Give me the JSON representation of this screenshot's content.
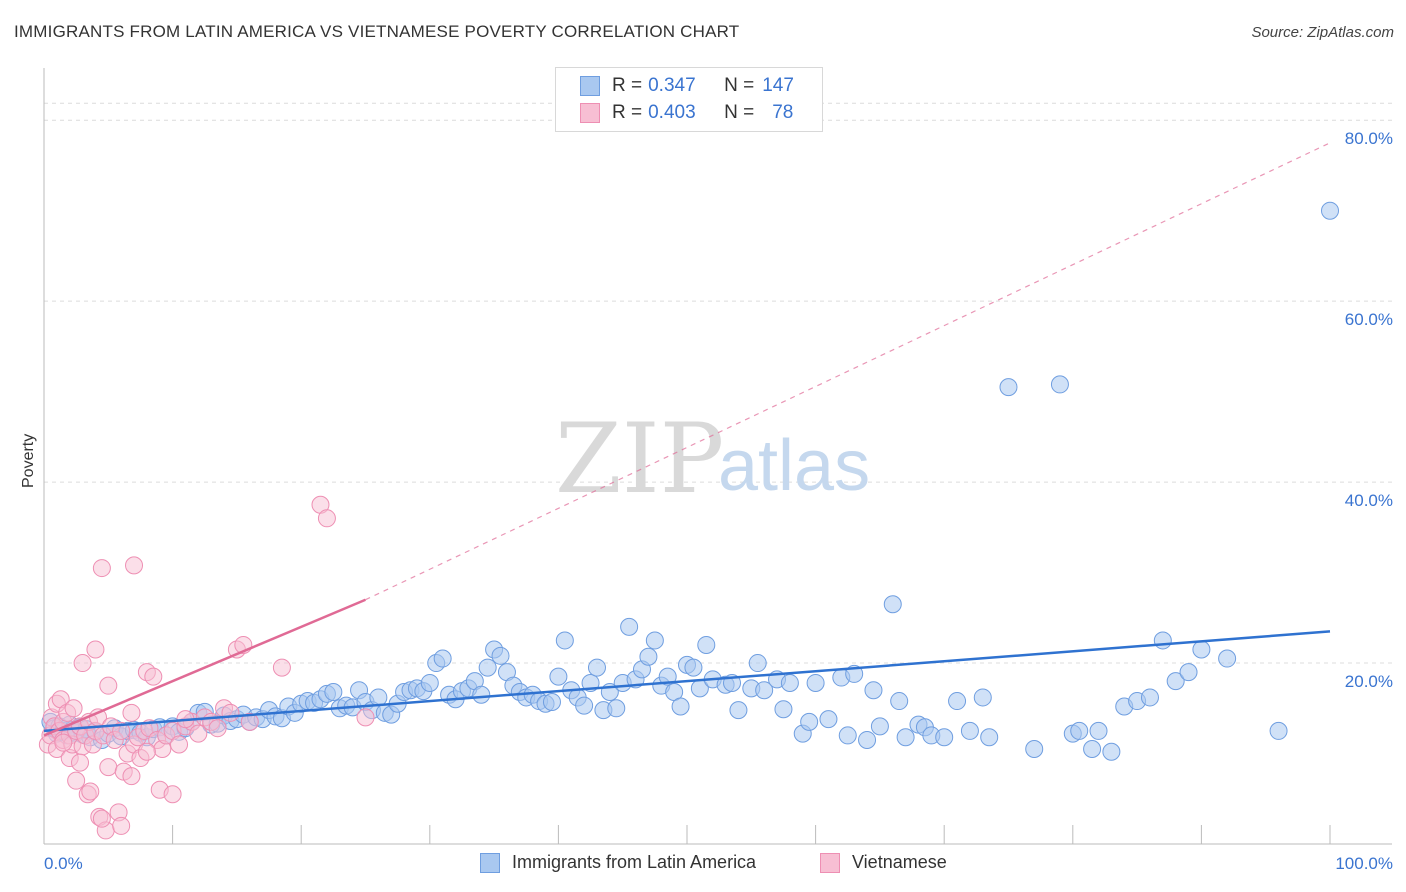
{
  "title": "IMMIGRANTS FROM LATIN AMERICA VS VIETNAMESE POVERTY CORRELATION CHART",
  "source": "Source: ZipAtlas.com",
  "watermark": {
    "zip": "ZIP",
    "atlas": "atlas"
  },
  "legend_top": [
    {
      "r_label": "R = ",
      "r_value": "0.347",
      "n_label": "N = ",
      "n_value": "147"
    },
    {
      "r_label": "R = ",
      "r_value": "0.403",
      "n_label": "N = ",
      "n_value": "78"
    }
  ],
  "chart_data": {
    "type": "scatter",
    "title": "IMMIGRANTS FROM LATIN AMERICA VS VIETNAMESE POVERTY CORRELATION CHART",
    "xlabel": "",
    "ylabel": "Poverty",
    "xlim": [
      0,
      100
    ],
    "ylim": [
      0,
      85
    ],
    "x_tick_labels": [
      {
        "value": 0,
        "label": "0.0%"
      },
      {
        "value": 100,
        "label": "100.0%"
      }
    ],
    "y_tick_labels": [
      {
        "value": 20,
        "label": "20.0%"
      },
      {
        "value": 40,
        "label": "40.0%"
      },
      {
        "value": 60,
        "label": "60.0%"
      },
      {
        "value": 80,
        "label": "80.0%"
      }
    ],
    "colors": {
      "blue_fill": "#a9c8f0",
      "blue_stroke": "#6f9ee0",
      "blue_line": "#2f72d0",
      "pink_fill": "#f7bfd3",
      "pink_stroke": "#ee8fb3",
      "pink_line": "#e06a95",
      "grid": "#dcdcdc",
      "axis": "#bbbbbb",
      "accent_text": "#3a74d0"
    },
    "series": [
      {
        "name": "Immigrants from Latin America",
        "color": "#a9c8f0",
        "r": 0.347,
        "n": 147,
        "trend": {
          "x0": 0,
          "y0": 12.5,
          "x1": 100,
          "y1": 23.5
        },
        "points": [
          [
            0.5,
            13.5
          ],
          [
            0.8,
            12.8
          ],
          [
            1,
            12.2
          ],
          [
            1.2,
            13
          ],
          [
            1.5,
            12.5
          ],
          [
            1.8,
            12
          ],
          [
            2,
            13.2
          ],
          [
            2.2,
            12.6
          ],
          [
            2.5,
            12.3
          ],
          [
            2.8,
            12.9
          ],
          [
            3,
            12.1
          ],
          [
            3.3,
            12.7
          ],
          [
            3.6,
            11.8
          ],
          [
            4,
            12.4
          ],
          [
            4.5,
            11.5
          ],
          [
            5,
            12.2
          ],
          [
            5.5,
            12.8
          ],
          [
            6,
            11.9
          ],
          [
            6.5,
            12.5
          ],
          [
            7,
            12.6
          ],
          [
            7.5,
            12.3
          ],
          [
            8,
            11.8
          ],
          [
            8.5,
            12.7
          ],
          [
            9,
            12.9
          ],
          [
            9.5,
            12
          ],
          [
            10,
            13
          ],
          [
            10.5,
            12.4
          ],
          [
            11,
            12.8
          ],
          [
            11.5,
            13.5
          ],
          [
            12,
            14.5
          ],
          [
            12.5,
            14.6
          ],
          [
            13,
            13.2
          ],
          [
            13.5,
            13.3
          ],
          [
            14,
            14.2
          ],
          [
            14.5,
            13.6
          ],
          [
            15,
            13.8
          ],
          [
            15.5,
            14.3
          ],
          [
            16,
            13.5
          ],
          [
            16.5,
            14
          ],
          [
            17,
            13.8
          ],
          [
            17.5,
            14.8
          ],
          [
            18,
            14.1
          ],
          [
            18.5,
            13.9
          ],
          [
            19,
            15.2
          ],
          [
            19.5,
            14.5
          ],
          [
            20,
            15.5
          ],
          [
            20.5,
            15.8
          ],
          [
            21,
            15.6
          ],
          [
            21.5,
            16
          ],
          [
            22,
            16.6
          ],
          [
            22.5,
            16.8
          ],
          [
            23,
            15
          ],
          [
            23.5,
            15.3
          ],
          [
            24,
            15.1
          ],
          [
            24.5,
            17
          ],
          [
            25,
            15.7
          ],
          [
            25.5,
            14.8
          ],
          [
            26,
            16.2
          ],
          [
            26.5,
            14.5
          ],
          [
            27,
            14.3
          ],
          [
            27.5,
            15.5
          ],
          [
            28,
            16.8
          ],
          [
            28.5,
            17
          ],
          [
            29,
            17.2
          ],
          [
            29.5,
            16.9
          ],
          [
            30,
            17.8
          ],
          [
            30.5,
            20
          ],
          [
            31,
            20.5
          ],
          [
            31.5,
            16.5
          ],
          [
            32,
            16
          ],
          [
            32.5,
            16.9
          ],
          [
            33,
            17.2
          ],
          [
            33.5,
            18
          ],
          [
            34,
            16.5
          ],
          [
            34.5,
            19.5
          ],
          [
            35,
            21.5
          ],
          [
            35.5,
            20.8
          ],
          [
            36,
            19
          ],
          [
            36.5,
            17.5
          ],
          [
            37,
            16.8
          ],
          [
            37.5,
            16.2
          ],
          [
            38,
            16.5
          ],
          [
            38.5,
            15.8
          ],
          [
            39,
            15.5
          ],
          [
            39.5,
            15.7
          ],
          [
            40,
            18.5
          ],
          [
            40.5,
            22.5
          ],
          [
            41,
            17
          ],
          [
            41.5,
            16.2
          ],
          [
            42,
            15.3
          ],
          [
            42.5,
            17.8
          ],
          [
            43,
            19.5
          ],
          [
            43.5,
            14.8
          ],
          [
            44,
            16.8
          ],
          [
            44.5,
            15
          ],
          [
            45,
            17.8
          ],
          [
            45.5,
            24
          ],
          [
            46,
            18.2
          ],
          [
            46.5,
            19.3
          ],
          [
            47,
            20.7
          ],
          [
            47.5,
            22.5
          ],
          [
            48,
            17.5
          ],
          [
            48.5,
            18.5
          ],
          [
            49,
            16.8
          ],
          [
            49.5,
            15.2
          ],
          [
            50,
            19.8
          ],
          [
            50.5,
            19.5
          ],
          [
            51,
            17.2
          ],
          [
            51.5,
            22
          ],
          [
            52,
            18.2
          ],
          [
            53,
            17.6
          ],
          [
            53.5,
            17.8
          ],
          [
            54,
            14.8
          ],
          [
            55,
            17.2
          ],
          [
            55.5,
            20
          ],
          [
            56,
            17
          ],
          [
            57,
            18.2
          ],
          [
            57.5,
            14.9
          ],
          [
            58,
            17.8
          ],
          [
            59,
            12.2
          ],
          [
            59.5,
            13.5
          ],
          [
            60,
            17.8
          ],
          [
            61,
            13.8
          ],
          [
            62,
            18.4
          ],
          [
            62.5,
            12
          ],
          [
            63,
            18.8
          ],
          [
            64,
            11.5
          ],
          [
            64.5,
            17
          ],
          [
            65,
            13
          ],
          [
            66,
            26.5
          ],
          [
            66.5,
            15.8
          ],
          [
            67,
            11.8
          ],
          [
            68,
            13.2
          ],
          [
            68.5,
            12.9
          ],
          [
            69,
            12
          ],
          [
            70,
            11.8
          ],
          [
            71,
            15.8
          ],
          [
            72,
            12.5
          ],
          [
            73,
            16.2
          ],
          [
            73.5,
            11.8
          ],
          [
            75,
            50.5
          ],
          [
            77,
            10.5
          ],
          [
            79,
            50.8
          ],
          [
            80,
            12.2
          ],
          [
            80.5,
            12.5
          ],
          [
            81.5,
            10.5
          ],
          [
            82,
            12.5
          ],
          [
            83,
            10.2
          ],
          [
            84,
            15.2
          ],
          [
            85,
            15.8
          ],
          [
            86,
            16.2
          ],
          [
            87,
            22.5
          ],
          [
            88,
            18
          ],
          [
            89,
            19
          ],
          [
            90,
            21.5
          ],
          [
            92,
            20.5
          ],
          [
            96,
            12.5
          ],
          [
            100,
            70
          ]
        ]
      },
      {
        "name": "Vietnamese",
        "color": "#f7bfd3",
        "r": 0.403,
        "n": 78,
        "trend": {
          "x0": 0,
          "y0": 12,
          "x1": 25,
          "y1": 27,
          "dashed_to": {
            "x": 100,
            "y": 77.5
          }
        },
        "points": [
          [
            0.3,
            11
          ],
          [
            0.5,
            12
          ],
          [
            0.6,
            14
          ],
          [
            0.8,
            13
          ],
          [
            1,
            15.5
          ],
          [
            1,
            10.5
          ],
          [
            1.2,
            12.5
          ],
          [
            1.3,
            16
          ],
          [
            1.5,
            11.5
          ],
          [
            1.5,
            13.5
          ],
          [
            1.8,
            14.5
          ],
          [
            2,
            12
          ],
          [
            2,
            9.5
          ],
          [
            2.2,
            11
          ],
          [
            2.3,
            15
          ],
          [
            2.5,
            7
          ],
          [
            2.5,
            12.5
          ],
          [
            2.8,
            13
          ],
          [
            3,
            10.8
          ],
          [
            3,
            20
          ],
          [
            3.2,
            12
          ],
          [
            3.4,
            5.5
          ],
          [
            3.5,
            13.5
          ],
          [
            3.6,
            5.8
          ],
          [
            3.8,
            11
          ],
          [
            4,
            21.5
          ],
          [
            4,
            12.5
          ],
          [
            4.2,
            14
          ],
          [
            4.3,
            3
          ],
          [
            4.5,
            30.5
          ],
          [
            4.6,
            12
          ],
          [
            4.8,
            1.5
          ],
          [
            5,
            8.5
          ],
          [
            5,
            17.5
          ],
          [
            5.2,
            13
          ],
          [
            5.5,
            11.5
          ],
          [
            5.8,
            3.5
          ],
          [
            6,
            2
          ],
          [
            6,
            12.5
          ],
          [
            6.2,
            8
          ],
          [
            6.5,
            10
          ],
          [
            6.8,
            14.5
          ],
          [
            7,
            30.8
          ],
          [
            7,
            11
          ],
          [
            7.3,
            11.8
          ],
          [
            7.5,
            9.5
          ],
          [
            7.8,
            12.5
          ],
          [
            8,
            19
          ],
          [
            8.2,
            12.8
          ],
          [
            8.5,
            18.5
          ],
          [
            8.8,
            11.5
          ],
          [
            9,
            6
          ],
          [
            9.2,
            10.5
          ],
          [
            9.5,
            12
          ],
          [
            10,
            12.5
          ],
          [
            10.5,
            11
          ],
          [
            11,
            13
          ],
          [
            11.5,
            13.5
          ],
          [
            12,
            12.2
          ],
          [
            12.5,
            14
          ],
          [
            13,
            13.5
          ],
          [
            13.5,
            12.8
          ],
          [
            14,
            15
          ],
          [
            14.5,
            14.5
          ],
          [
            15,
            21.5
          ],
          [
            15.5,
            22
          ],
          [
            16,
            13.5
          ],
          [
            18.5,
            19.5
          ],
          [
            21.5,
            37.5
          ],
          [
            22,
            36
          ],
          [
            25,
            14
          ],
          [
            1.5,
            11.2
          ],
          [
            2.8,
            9
          ],
          [
            6.8,
            7.5
          ],
          [
            8,
            10.2
          ],
          [
            11,
            13.8
          ],
          [
            4.5,
            2.8
          ],
          [
            10,
            5.5
          ]
        ]
      }
    ]
  },
  "legend_bottom": [
    "Immigrants from Latin America",
    "Vietnamese"
  ]
}
